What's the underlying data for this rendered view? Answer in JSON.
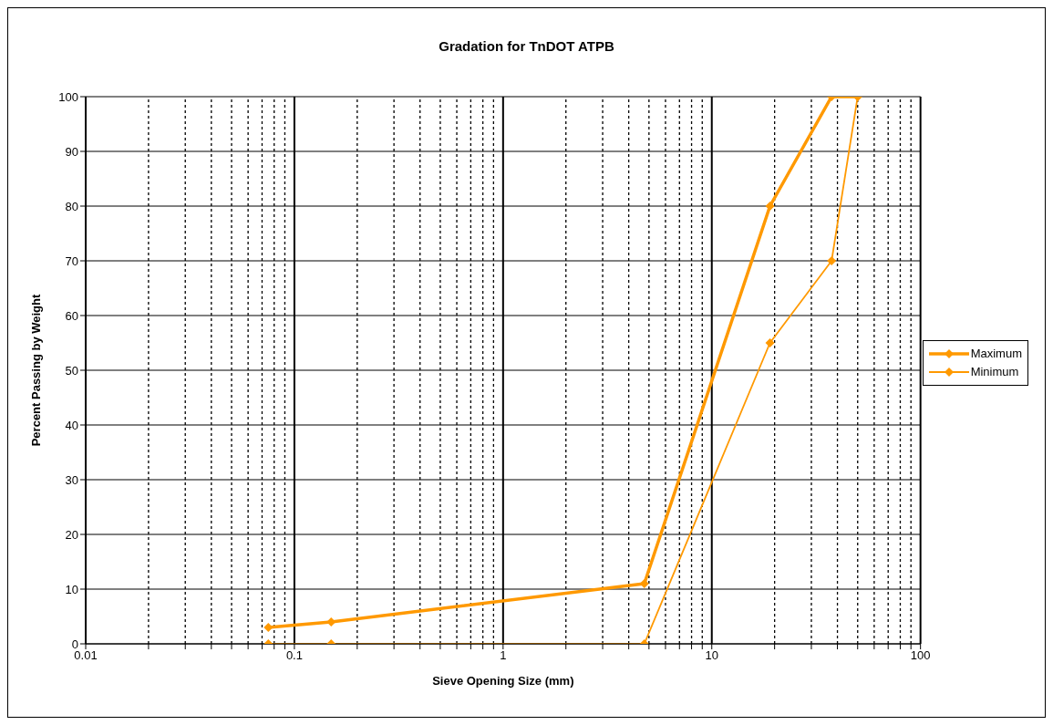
{
  "chart_data": {
    "type": "line",
    "title": "Gradation for TnDOT ATPB",
    "xlabel": "Sieve Opening Size (mm)",
    "ylabel": "Percent Passing by Weight",
    "x": [
      0.075,
      0.15,
      4.75,
      19,
      37.5,
      50
    ],
    "series": [
      {
        "name": "Maximum",
        "color": "#ff9900",
        "values": [
          3,
          4,
          11,
          80,
          100,
          100
        ]
      },
      {
        "name": "Minimum",
        "color": "#ff9900",
        "values": [
          0,
          0,
          0,
          55,
          70,
          100
        ]
      }
    ],
    "log": "x",
    "xlim": [
      0.01,
      100
    ],
    "xticks": [
      {
        "value": 0.01,
        "label": "0.01"
      },
      {
        "value": 0.02,
        "label": null
      },
      {
        "value": 0.03,
        "label": null
      },
      {
        "value": 0.04,
        "label": null
      },
      {
        "value": 0.05,
        "label": null
      },
      {
        "value": 0.06,
        "label": null
      },
      {
        "value": 0.07,
        "label": null
      },
      {
        "value": 0.08,
        "label": null
      },
      {
        "value": 0.09,
        "label": null
      },
      {
        "value": 0.1,
        "label": "0.1"
      },
      {
        "value": 0.2,
        "label": null
      },
      {
        "value": 0.3,
        "label": null
      },
      {
        "value": 0.4,
        "label": null
      },
      {
        "value": 0.5,
        "label": null
      },
      {
        "value": 0.6,
        "label": null
      },
      {
        "value": 0.7,
        "label": null
      },
      {
        "value": 0.8,
        "label": null
      },
      {
        "value": 0.9,
        "label": null
      },
      1,
      {
        "value": 2,
        "label": null
      },
      {
        "value": 3,
        "label": null
      },
      {
        "value": 4,
        "label": null
      },
      {
        "value": 5,
        "label": null
      },
      {
        "value": 6,
        "label": null
      },
      {
        "value": 7,
        "label": null
      },
      {
        "value": 8,
        "label": null
      },
      {
        "value": 9,
        "label": null
      },
      10,
      {
        "value": 20,
        "label": null
      },
      {
        "value": 30,
        "label": null
      },
      {
        "value": 40,
        "label": null
      },
      {
        "value": 50,
        "label": null
      },
      {
        "value": 60,
        "label": null
      },
      {
        "value": 70,
        "label": null
      },
      {
        "value": 80,
        "label": null
      },
      {
        "value": 90,
        "label": null
      },
      100
    ],
    "ylim": [
      0,
      100
    ],
    "yticks": [
      0,
      10,
      20,
      30,
      40,
      50,
      60,
      70,
      80,
      90,
      100
    ],
    "grid": true,
    "legend": "right",
    "marker": "diamond",
    "line_style": "solid"
  }
}
